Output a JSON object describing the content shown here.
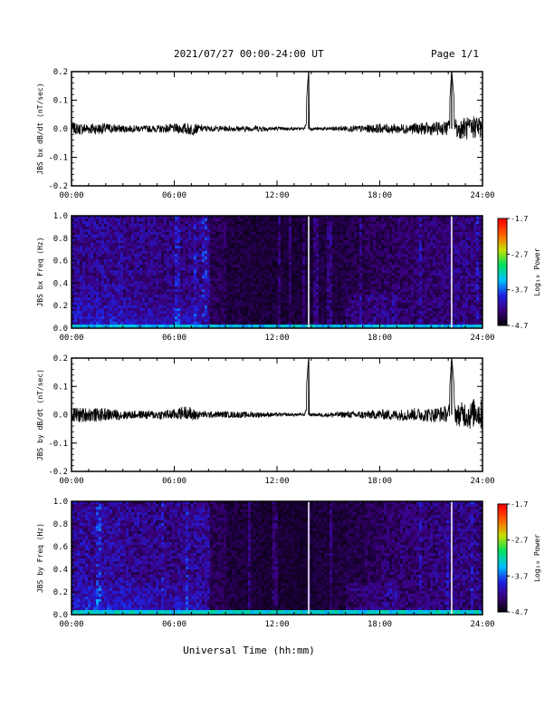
{
  "header": {
    "title": "2021/07/27  00:00-24:00 UT",
    "page": "Page 1/1"
  },
  "x_axis_title": "Universal Time (hh:mm)",
  "x_ticks": [
    "00:00",
    "06:00",
    "12:00",
    "18:00",
    "24:00"
  ],
  "colorbar": {
    "label": "Log₁₀ Power",
    "ticks": [
      "-1.7",
      "-2.7",
      "-3.7",
      "-4.7"
    ],
    "range": [
      -4.7,
      -1.7
    ],
    "colors": [
      "#000000",
      "#3a007a",
      "#2020e0",
      "#00c0ff",
      "#00e060",
      "#c8e000",
      "#ff6000",
      "#ff0000"
    ]
  },
  "chart_data": [
    {
      "type": "line",
      "ylabel": "JBS bx dB/dt (nT/sec)",
      "xlabel": "",
      "x_unit": "hours UT",
      "xlim": [
        0,
        24
      ],
      "ylim": [
        -0.2,
        0.2
      ],
      "y_ticks": [
        "0.2",
        "0.1",
        "0.0",
        "-0.1",
        "-0.2"
      ],
      "series": [
        {
          "x": [
            0,
            0.5,
            1,
            1.5,
            2,
            3,
            4,
            5,
            6,
            6.5,
            7,
            7.5,
            8,
            9,
            10,
            10.7,
            11,
            12,
            13,
            13.6,
            13.85,
            13.9,
            14.2,
            15,
            16,
            17,
            18,
            19,
            20,
            21,
            21.5,
            22,
            22.2,
            22.5,
            23,
            23.3,
            23.6,
            24
          ],
          "y": [
            0.01,
            -0.005,
            0.005,
            -0.003,
            0.004,
            -0.002,
            0.003,
            -0.004,
            0.005,
            0.003,
            -0.01,
            0.005,
            0.002,
            0.003,
            -0.002,
            0.01,
            0.002,
            0.001,
            0.0,
            0.001,
            0.205,
            0.0,
            0.0,
            -0.002,
            0.004,
            -0.003,
            0.005,
            -0.004,
            0.006,
            -0.005,
            0.007,
            0.012,
            0.205,
            -0.01,
            0.015,
            -0.02,
            0.06,
            -0.01
          ]
        }
      ],
      "noise_envelope": {
        "x": [
          0,
          1,
          2,
          3,
          4,
          5,
          6,
          7,
          7.5,
          8,
          9,
          10,
          11,
          12,
          13,
          14,
          15,
          16,
          17,
          18,
          19,
          20,
          21,
          22,
          23,
          24
        ],
        "amp": [
          0.012,
          0.013,
          0.012,
          0.008,
          0.007,
          0.008,
          0.01,
          0.014,
          0.008,
          0.006,
          0.006,
          0.006,
          0.007,
          0.004,
          0.003,
          0.003,
          0.004,
          0.006,
          0.008,
          0.01,
          0.011,
          0.012,
          0.014,
          0.016,
          0.025,
          0.03
        ]
      }
    },
    {
      "type": "heatmap",
      "ylabel": "JBS bx Freq (Hz)",
      "xlabel": "",
      "x_unit": "hours UT",
      "xlim": [
        0,
        24
      ],
      "ylim": [
        0,
        1.0
      ],
      "y_ticks": [
        "1.0",
        "0.8",
        "0.6",
        "0.4",
        "0.2",
        "0.0"
      ],
      "value_range": [
        -4.7,
        -1.7
      ],
      "activity_by_hour": [
        0.7,
        0.72,
        0.7,
        0.65,
        0.62,
        0.6,
        0.62,
        0.68,
        0.4,
        0.3,
        0.28,
        0.27,
        0.26,
        0.25,
        0.3,
        0.32,
        0.35,
        0.4,
        0.45,
        0.5,
        0.52,
        0.55,
        0.6,
        0.6
      ],
      "low_freq_band": {
        "freq_max": 0.04,
        "value": -3.2
      },
      "data_gaps_hours": [
        13.85,
        22.2
      ]
    },
    {
      "type": "line",
      "ylabel": "JBS by dB/dt (nT/sec)",
      "xlabel": "",
      "x_unit": "hours UT",
      "xlim": [
        0,
        24
      ],
      "ylim": [
        -0.2,
        0.2
      ],
      "y_ticks": [
        "0.2",
        "0.1",
        "0.0",
        "-0.1",
        "-0.2"
      ],
      "series": [
        {
          "x": [
            0,
            0.5,
            1,
            1.5,
            2,
            3,
            4,
            5,
            6,
            6.8,
            7,
            7.5,
            8,
            9,
            10,
            11,
            12,
            13,
            13.6,
            13.85,
            13.9,
            14.2,
            15,
            16,
            17,
            18,
            19,
            20,
            21,
            21.5,
            22,
            22.2,
            22.5,
            23,
            23.3,
            23.6,
            24
          ],
          "y": [
            0.005,
            -0.01,
            0.008,
            -0.006,
            0.004,
            -0.005,
            0.004,
            -0.003,
            0.006,
            0.05,
            -0.01,
            0.005,
            0.002,
            0.004,
            -0.003,
            0.002,
            0.001,
            0.0,
            0.001,
            0.205,
            0.0,
            0.0,
            -0.003,
            0.004,
            -0.004,
            0.005,
            -0.006,
            0.007,
            -0.006,
            0.01,
            0.012,
            0.205,
            -0.01,
            0.02,
            -0.025,
            0.07,
            -0.01
          ]
        }
      ],
      "noise_envelope": {
        "x": [
          0,
          1,
          2,
          3,
          4,
          5,
          6,
          7,
          7.5,
          8,
          9,
          10,
          11,
          12,
          13,
          14,
          15,
          16,
          17,
          18,
          19,
          20,
          21,
          22,
          23,
          24
        ],
        "amp": [
          0.018,
          0.016,
          0.014,
          0.01,
          0.009,
          0.01,
          0.012,
          0.016,
          0.008,
          0.007,
          0.007,
          0.007,
          0.006,
          0.004,
          0.003,
          0.003,
          0.005,
          0.007,
          0.009,
          0.011,
          0.012,
          0.014,
          0.016,
          0.018,
          0.03,
          0.035
        ]
      }
    },
    {
      "type": "heatmap",
      "ylabel": "JBS by Freq (Hz)",
      "xlabel": "",
      "x_unit": "hours UT",
      "xlim": [
        0,
        24
      ],
      "ylim": [
        0,
        1.0
      ],
      "y_ticks": [
        "1.0",
        "0.8",
        "0.6",
        "0.4",
        "0.2",
        "0.0"
      ],
      "value_range": [
        -4.7,
        -1.7
      ],
      "activity_by_hour": [
        0.75,
        0.75,
        0.72,
        0.68,
        0.65,
        0.62,
        0.65,
        0.7,
        0.4,
        0.3,
        0.28,
        0.25,
        0.24,
        0.22,
        0.28,
        0.3,
        0.33,
        0.4,
        0.48,
        0.52,
        0.55,
        0.58,
        0.62,
        0.62
      ],
      "low_freq_band": {
        "freq_max": 0.05,
        "value": -3.1
      },
      "data_gaps_hours": [
        13.85,
        22.2
      ]
    }
  ]
}
